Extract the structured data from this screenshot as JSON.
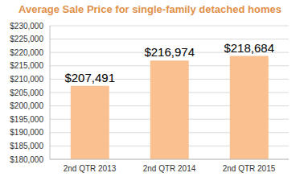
{
  "chart_data": {
    "type": "bar",
    "title": "Average Sale Price for single-family detached homes",
    "categories": [
      "2nd QTR 2013",
      "2nd QTR 2014",
      "2nd QTR 2015"
    ],
    "values": [
      207491,
      216974,
      218684
    ],
    "value_labels": [
      "$207,491",
      "$216,974",
      "$218,684"
    ],
    "data_labels": true,
    "color": "#fac090",
    "ylim": [
      180000,
      230000
    ],
    "yticks": [
      {
        "value": 180000,
        "label": "$180,000"
      },
      {
        "value": 185000,
        "label": "$185,000"
      },
      {
        "value": 190000,
        "label": "$190,000"
      },
      {
        "value": 195000,
        "label": "$195,000"
      },
      {
        "value": 200000,
        "label": "$200,000"
      },
      {
        "value": 205000,
        "label": "$205,000"
      },
      {
        "value": 210000,
        "label": "$210,000"
      },
      {
        "value": 215000,
        "label": "$215,000"
      },
      {
        "value": 220000,
        "label": "$220,000"
      },
      {
        "value": 225000,
        "label": "$225,000"
      },
      {
        "value": 230000,
        "label": "$230,000"
      }
    ],
    "grid": true
  }
}
